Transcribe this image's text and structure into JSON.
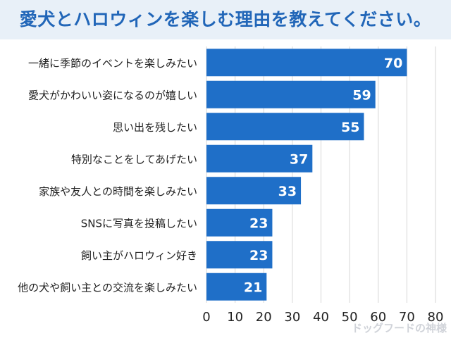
{
  "page": {
    "title": "愛犬とハロウィンを楽しむ理由を教えてください。",
    "watermark": "ドッグフードの神様"
  },
  "colors": {
    "title_bg": "#e8f0f8",
    "title_text": "#2166b8",
    "bar": "#1f6fc8",
    "grid": "#d6d6d6",
    "label": "#222222",
    "value_label": "#ffffff"
  },
  "chart_data": {
    "type": "bar",
    "orientation": "horizontal",
    "title": "愛犬とハロウィンを楽しむ理由を教えてください。",
    "categories": [
      "一緒に季節のイベントを楽しみたい",
      "愛犬がかわいい姿になるのが嬉しい",
      "思い出を残したい",
      "特別なことをしてあげたい",
      "家族や友人との時間を楽しみたい",
      "SNSに写真を投稿したい",
      "飼い主がハロウィン好き",
      "他の犬や飼い主との交流を楽しみたい"
    ],
    "values": [
      70,
      59,
      55,
      37,
      33,
      23,
      23,
      21
    ],
    "xlim": [
      0,
      80
    ],
    "xticks": [
      0,
      10,
      20,
      30,
      40,
      50,
      60,
      70,
      80
    ],
    "xlabel": "",
    "ylabel": "",
    "grid": true,
    "legend": "none"
  }
}
